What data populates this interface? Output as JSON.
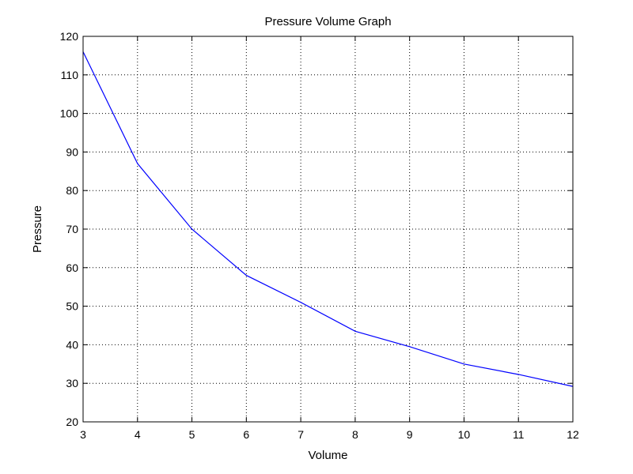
{
  "chart_data": {
    "type": "line",
    "title": "Pressure Volume Graph",
    "xlabel": "Volume",
    "ylabel": "Pressure",
    "xlim": [
      3,
      12
    ],
    "ylim": [
      20,
      120
    ],
    "xticks": [
      3,
      4,
      5,
      6,
      7,
      8,
      9,
      10,
      11,
      12
    ],
    "yticks": [
      20,
      30,
      40,
      50,
      60,
      70,
      80,
      90,
      100,
      110,
      120
    ],
    "grid": true,
    "grid_style": "dotted",
    "series": [
      {
        "color": "#0000ff",
        "x": [
          3,
          4,
          5,
          6,
          7,
          8,
          9,
          10,
          11,
          12
        ],
        "y": [
          116,
          87,
          70,
          58,
          51,
          43.5,
          39.5,
          35,
          32.3,
          29.2
        ]
      }
    ]
  }
}
